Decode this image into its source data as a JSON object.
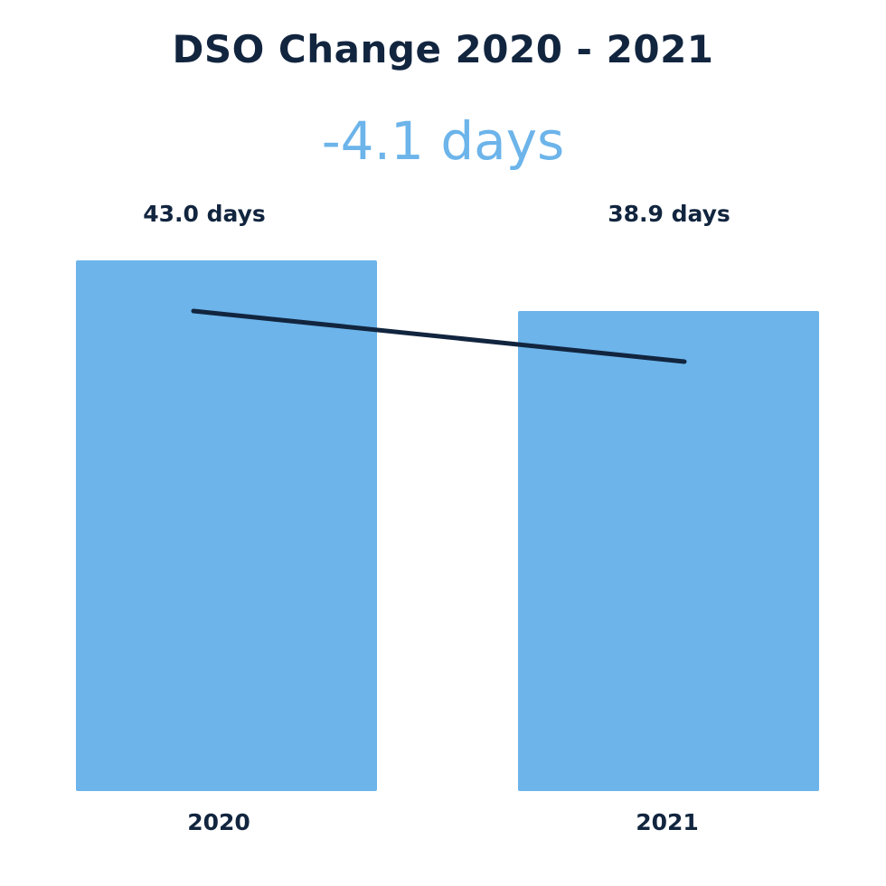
{
  "chart_data": {
    "type": "bar",
    "title": "DSO Change 2020 - 2021",
    "subtitle": "-4.1 days",
    "categories": [
      "2020",
      "2021"
    ],
    "values": [
      43.0,
      38.9
    ],
    "data_labels": [
      "43.0 days",
      "38.9 days"
    ],
    "unit": "days",
    "ylim": [
      0,
      43.0
    ],
    "grid": false,
    "legend": "none",
    "overlay_line": true,
    "colors": {
      "bar": "#6cb4ea",
      "line": "#12253f",
      "title": "#12253f",
      "subtitle": "#6cb4ea"
    }
  }
}
